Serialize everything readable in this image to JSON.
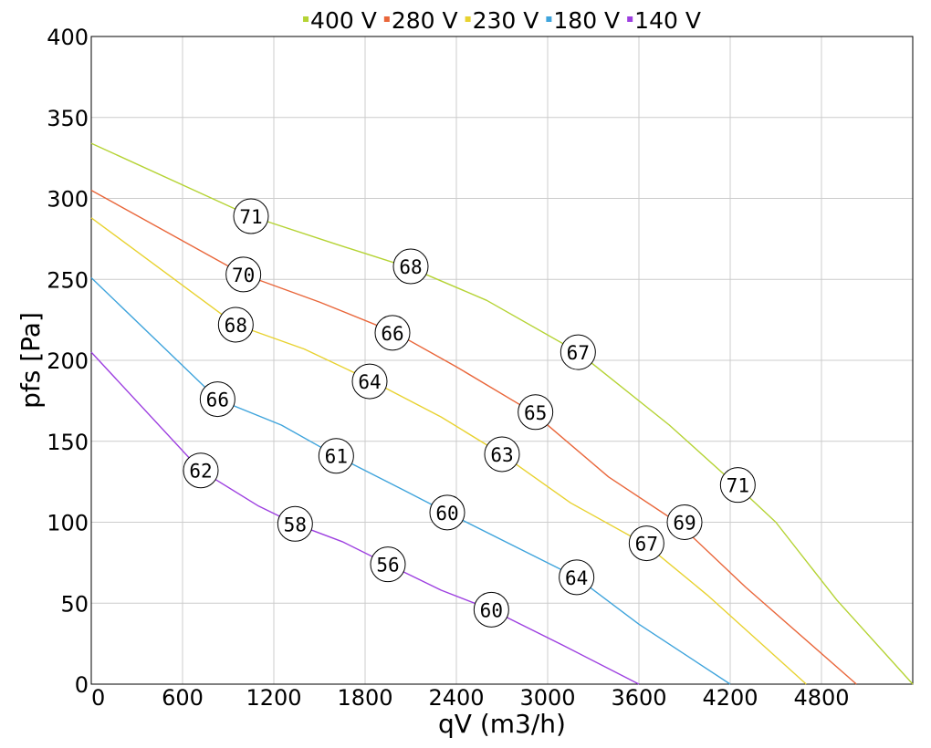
{
  "chart_data": {
    "type": "line",
    "title": "",
    "xlabel": "qV (m3/h)",
    "ylabel": "pfs [Pa]",
    "xlim": [
      0,
      5400
    ],
    "ylim": [
      0,
      400
    ],
    "x_ticks": [
      0,
      600,
      1200,
      1800,
      2400,
      3000,
      3600,
      4200,
      4800
    ],
    "y_ticks": [
      0,
      50,
      100,
      150,
      200,
      250,
      300,
      350,
      400
    ],
    "grid": true,
    "legend_position": "top",
    "series": [
      {
        "name": "400 V",
        "color": "#b5d334",
        "points": [
          [
            0,
            334
          ],
          [
            1050,
            289
          ],
          [
            1600,
            272
          ],
          [
            2100,
            257
          ],
          [
            2600,
            237
          ],
          [
            3200,
            205
          ],
          [
            3800,
            160
          ],
          [
            4250,
            122
          ],
          [
            4500,
            100
          ],
          [
            4900,
            52
          ],
          [
            5400,
            0
          ]
        ],
        "labels": [
          {
            "x": 1050,
            "y": 289,
            "text": "71"
          },
          {
            "x": 2100,
            "y": 258,
            "text": "68"
          },
          {
            "x": 3200,
            "y": 205,
            "text": "67"
          },
          {
            "x": 4250,
            "y": 123,
            "text": "71"
          }
        ]
      },
      {
        "name": "280 V",
        "color": "#e9663a",
        "points": [
          [
            0,
            305
          ],
          [
            1000,
            253
          ],
          [
            1500,
            236
          ],
          [
            2000,
            217
          ],
          [
            2400,
            196
          ],
          [
            2900,
            168
          ],
          [
            3400,
            128
          ],
          [
            3850,
            100
          ],
          [
            4300,
            60
          ],
          [
            5030,
            0
          ]
        ],
        "labels": [
          {
            "x": 1000,
            "y": 253,
            "text": "70"
          },
          {
            "x": 1980,
            "y": 217,
            "text": "66"
          },
          {
            "x": 2920,
            "y": 168,
            "text": "65"
          },
          {
            "x": 3900,
            "y": 100,
            "text": "69"
          }
        ]
      },
      {
        "name": "230 V",
        "color": "#e8d230",
        "points": [
          [
            0,
            288
          ],
          [
            950,
            222
          ],
          [
            1400,
            207
          ],
          [
            1850,
            187
          ],
          [
            2300,
            165
          ],
          [
            2700,
            142
          ],
          [
            3150,
            112
          ],
          [
            3650,
            86
          ],
          [
            4050,
            55
          ],
          [
            4700,
            0
          ]
        ],
        "labels": [
          {
            "x": 950,
            "y": 222,
            "text": "68"
          },
          {
            "x": 1830,
            "y": 187,
            "text": "64"
          },
          {
            "x": 2700,
            "y": 142,
            "text": "63"
          },
          {
            "x": 3650,
            "y": 87,
            "text": "67"
          }
        ]
      },
      {
        "name": "180 V",
        "color": "#3fa4dc",
        "points": [
          [
            0,
            251
          ],
          [
            830,
            176
          ],
          [
            1250,
            160
          ],
          [
            1610,
            141
          ],
          [
            2050,
            120
          ],
          [
            2340,
            106
          ],
          [
            2850,
            82
          ],
          [
            3190,
            66
          ],
          [
            3600,
            37
          ],
          [
            4200,
            0
          ]
        ],
        "labels": [
          {
            "x": 830,
            "y": 176,
            "text": "66"
          },
          {
            "x": 1610,
            "y": 141,
            "text": "61"
          },
          {
            "x": 2340,
            "y": 106,
            "text": "60"
          },
          {
            "x": 3190,
            "y": 66,
            "text": "64"
          }
        ]
      },
      {
        "name": "140 V",
        "color": "#9d3fe0",
        "points": [
          [
            0,
            205
          ],
          [
            720,
            132
          ],
          [
            1100,
            110
          ],
          [
            1340,
            99
          ],
          [
            1650,
            88
          ],
          [
            1950,
            74
          ],
          [
            2300,
            58
          ],
          [
            2630,
            46
          ],
          [
            3100,
            24
          ],
          [
            3600,
            0
          ]
        ],
        "labels": [
          {
            "x": 720,
            "y": 132,
            "text": "62"
          },
          {
            "x": 1340,
            "y": 99,
            "text": "58"
          },
          {
            "x": 1950,
            "y": 74,
            "text": "56"
          },
          {
            "x": 2630,
            "y": 46,
            "text": "60"
          }
        ]
      }
    ]
  }
}
